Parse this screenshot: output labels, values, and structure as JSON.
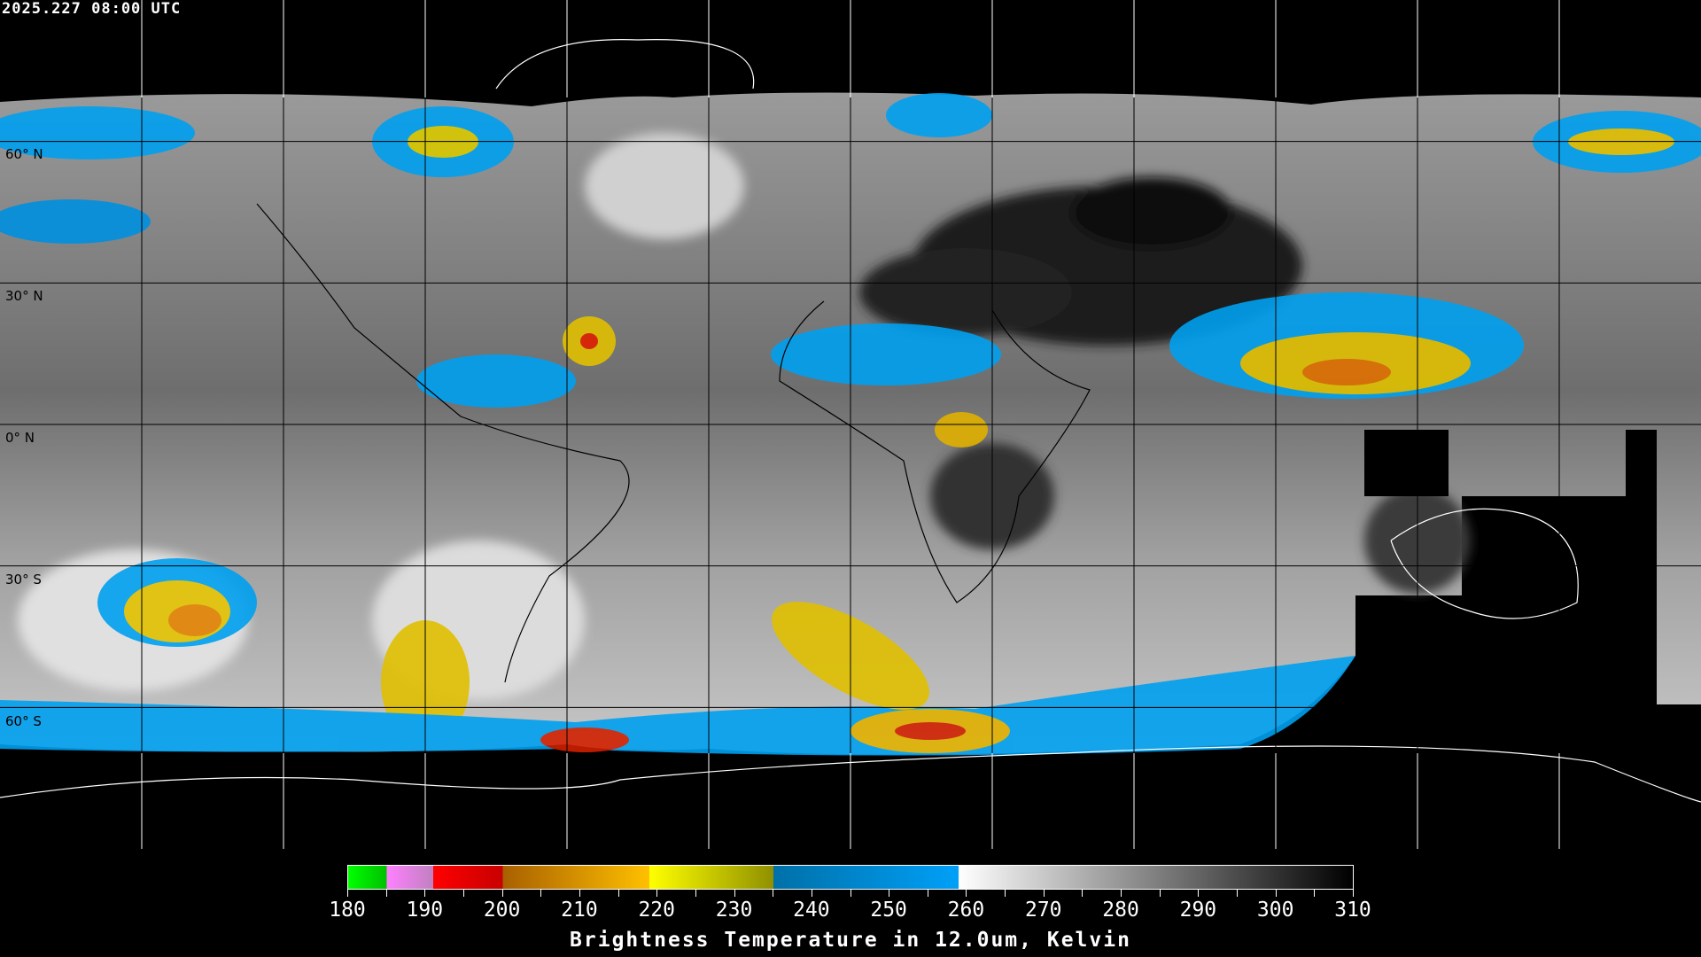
{
  "header": {
    "timestamp": "2025.227 08:00 UTC"
  },
  "map": {
    "projection": "equirectangular",
    "lon_range": [
      -180,
      180
    ],
    "lat_range": [
      -90,
      90
    ],
    "grid_spacing_deg": 30,
    "lat_labels": [
      "60° N",
      "30° N",
      "0° N",
      "30° S",
      "60° S"
    ],
    "missing_data_color": "#000000",
    "coastline_color_on_data": "#000000",
    "coastline_color_on_background": "#ffffff"
  },
  "colorbar": {
    "title": "Brightness Temperature in 12.0um, Kelvin",
    "min": 180,
    "max": 310,
    "tick_labels": [
      "180",
      "190",
      "200",
      "210",
      "220",
      "230",
      "240",
      "250",
      "260",
      "270",
      "280",
      "290",
      "300",
      "310"
    ],
    "segments": [
      {
        "from": 180,
        "to": 185,
        "start_color": "#00ff00",
        "end_color": "#00c000"
      },
      {
        "from": 185,
        "to": 191,
        "start_color": "#ff80ff",
        "end_color": "#c080c0"
      },
      {
        "from": 191,
        "to": 200,
        "start_color": "#ff0000",
        "end_color": "#c80000"
      },
      {
        "from": 200,
        "to": 219,
        "start_color": "#a86000",
        "end_color": "#ffc000"
      },
      {
        "from": 219,
        "to": 235,
        "start_color": "#ffff00",
        "end_color": "#909000"
      },
      {
        "from": 235,
        "to": 259,
        "start_color": "#0070a8",
        "end_color": "#00a0f8"
      },
      {
        "from": 259,
        "to": 310,
        "start_color": "#ffffff",
        "end_color": "#000000"
      }
    ]
  }
}
